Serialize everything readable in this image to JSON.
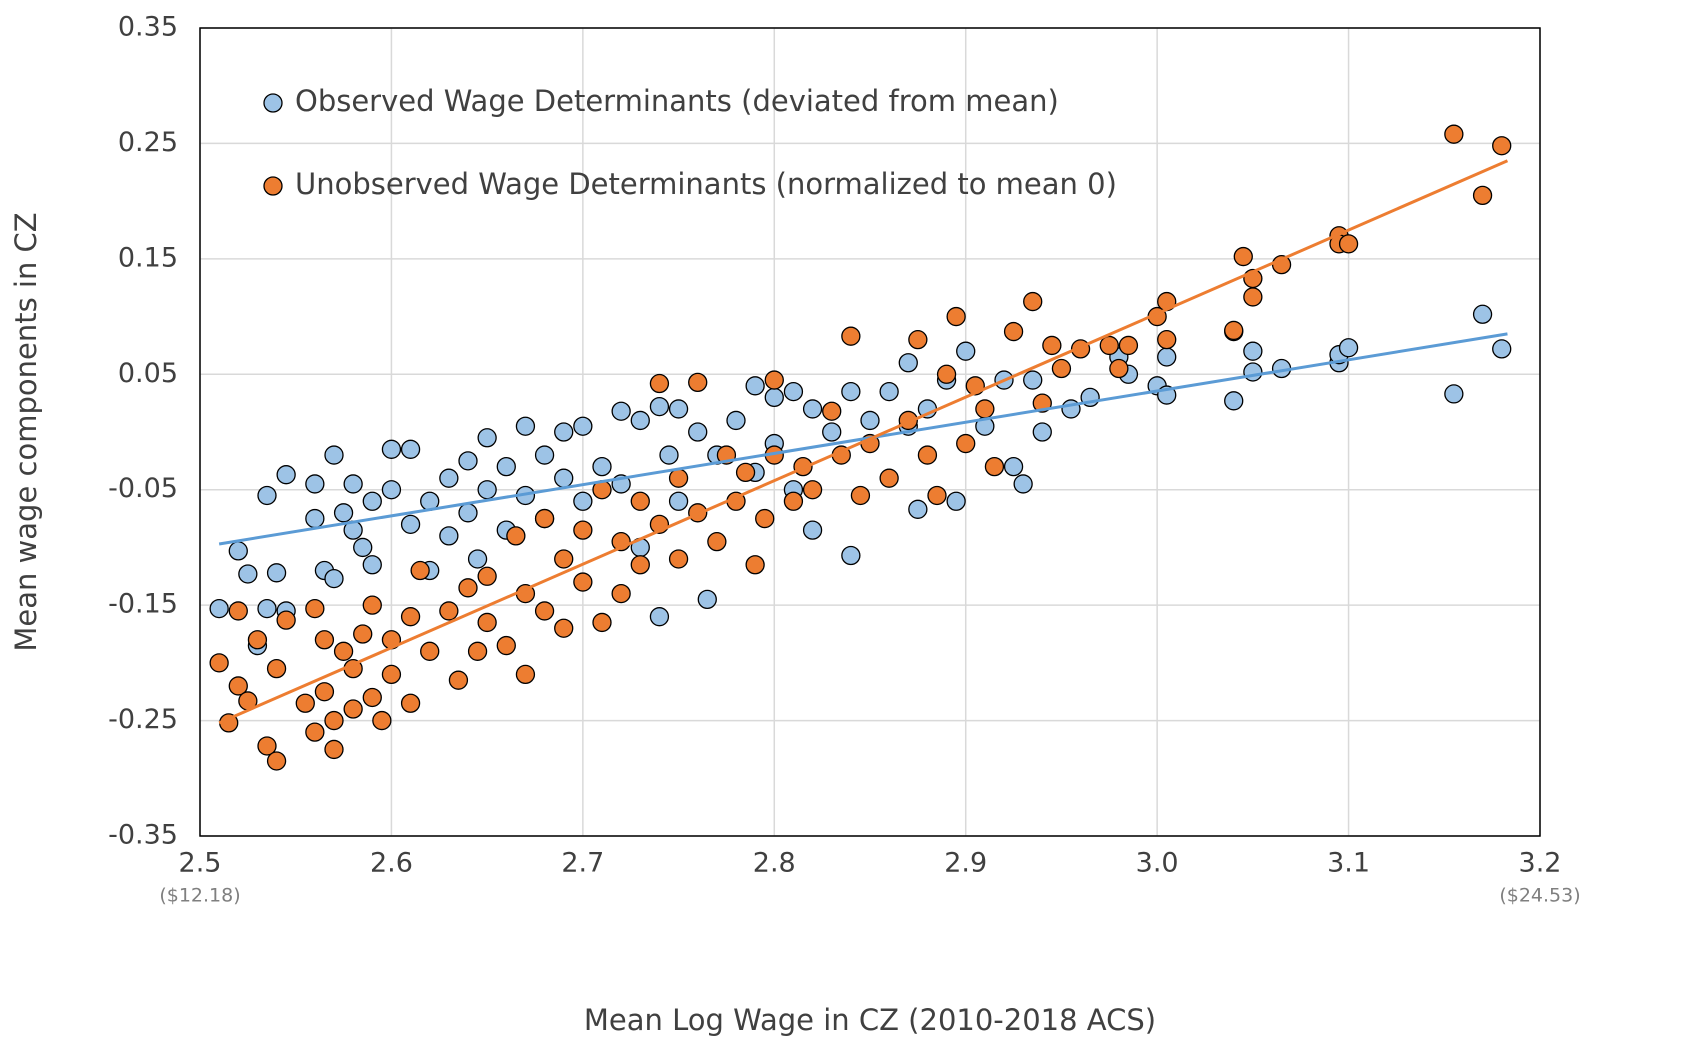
{
  "chart_data": {
    "type": "scatter",
    "x_label": "Mean Log Wage in CZ (2010-2018 ACS)",
    "y_label": "Mean wage components in CZ",
    "xlim": [
      2.5,
      3.2
    ],
    "ylim": [
      -0.35,
      0.35
    ],
    "xticks": [
      2.5,
      2.6,
      2.7,
      2.8,
      2.9,
      {
        "value": 3,
        "label": "3.0"
      },
      3.1,
      3.2
    ],
    "yticks": [
      -0.35,
      -0.25,
      -0.15,
      -0.05,
      0.05,
      0.15,
      0.25,
      0.35
    ],
    "grid": true,
    "legend": "upper left",
    "xtick_notes": [
      {
        "x": 2.5,
        "text": "($12.18)"
      },
      {
        "x": 3.2,
        "text": "($24.53)"
      }
    ],
    "series": [
      {
        "name": "Observed Wage Determinants (deviated from mean)",
        "color": "#9dc3e6",
        "trend_color": "#5b9bd5",
        "trend_x": [
          2.51,
          3.183
        ],
        "trend_y": [
          -0.097,
          0.085
        ],
        "x": [
          2.51,
          2.52,
          2.525,
          2.53,
          2.535,
          2.54,
          2.535,
          2.545,
          2.545,
          2.56,
          2.56,
          2.565,
          2.57,
          2.57,
          2.575,
          2.58,
          2.58,
          2.585,
          2.59,
          2.59,
          2.6,
          2.6,
          2.61,
          2.61,
          2.62,
          2.62,
          2.63,
          2.63,
          2.64,
          2.64,
          2.645,
          2.65,
          2.65,
          2.66,
          2.66,
          2.67,
          2.67,
          2.68,
          2.68,
          2.69,
          2.69,
          2.7,
          2.7,
          2.71,
          2.72,
          2.72,
          2.73,
          2.73,
          2.74,
          2.74,
          2.745,
          2.75,
          2.75,
          2.76,
          2.765,
          2.77,
          2.78,
          2.79,
          2.79,
          2.8,
          2.8,
          2.81,
          2.81,
          2.82,
          2.82,
          2.83,
          2.84,
          2.84,
          2.85,
          2.86,
          2.87,
          2.87,
          2.875,
          2.88,
          2.89,
          2.895,
          2.9,
          2.91,
          2.92,
          2.925,
          2.93,
          2.935,
          2.94,
          2.955,
          2.965,
          2.98,
          2.985,
          3.0,
          3.005,
          3.005,
          3.04,
          3.04,
          3.05,
          3.05,
          3.065,
          3.095,
          3.095,
          3.1,
          3.155,
          3.17,
          3.18
        ],
        "values": [
          -0.153,
          -0.103,
          -0.123,
          -0.185,
          -0.153,
          -0.122,
          -0.055,
          -0.037,
          -0.155,
          -0.045,
          -0.075,
          -0.12,
          -0.127,
          -0.02,
          -0.07,
          -0.045,
          -0.085,
          -0.1,
          -0.06,
          -0.115,
          -0.015,
          -0.05,
          -0.08,
          -0.015,
          -0.06,
          -0.12,
          -0.04,
          -0.09,
          -0.025,
          -0.07,
          -0.11,
          -0.005,
          -0.05,
          -0.03,
          -0.085,
          0.005,
          -0.055,
          -0.02,
          -0.075,
          -0.04,
          0.0,
          0.005,
          -0.06,
          -0.03,
          0.018,
          -0.045,
          0.01,
          -0.1,
          0.022,
          -0.16,
          -0.02,
          0.02,
          -0.06,
          0.0,
          -0.145,
          -0.02,
          0.01,
          0.04,
          -0.035,
          0.03,
          -0.01,
          0.035,
          -0.05,
          0.02,
          -0.085,
          0.0,
          0.035,
          -0.107,
          0.01,
          0.035,
          0.06,
          0.005,
          -0.067,
          0.02,
          0.045,
          -0.06,
          0.07,
          0.005,
          0.045,
          -0.03,
          -0.045,
          0.045,
          0.0,
          0.02,
          0.03,
          0.065,
          0.05,
          0.04,
          0.065,
          0.032,
          0.087,
          0.027,
          0.052,
          0.07,
          0.055,
          0.06,
          0.067,
          0.073,
          0.033,
          0.102,
          0.072
        ]
      },
      {
        "name": "Unobserved Wage Determinants (normalized to mean 0)",
        "color": "#ed7d31",
        "trend_color": "#ed7d31",
        "trend_x": [
          2.51,
          3.183
        ],
        "trend_y": [
          -0.252,
          0.235
        ],
        "x": [
          2.51,
          2.515,
          2.52,
          2.52,
          2.525,
          2.53,
          2.535,
          2.54,
          2.54,
          2.545,
          2.555,
          2.56,
          2.56,
          2.565,
          2.565,
          2.57,
          2.57,
          2.575,
          2.58,
          2.58,
          2.585,
          2.59,
          2.59,
          2.595,
          2.6,
          2.6,
          2.61,
          2.61,
          2.615,
          2.62,
          2.63,
          2.635,
          2.64,
          2.645,
          2.65,
          2.65,
          2.66,
          2.665,
          2.67,
          2.67,
          2.68,
          2.68,
          2.69,
          2.69,
          2.7,
          2.7,
          2.71,
          2.71,
          2.72,
          2.72,
          2.73,
          2.73,
          2.74,
          2.74,
          2.75,
          2.75,
          2.76,
          2.76,
          2.77,
          2.775,
          2.78,
          2.785,
          2.79,
          2.795,
          2.8,
          2.8,
          2.81,
          2.815,
          2.82,
          2.83,
          2.835,
          2.84,
          2.845,
          2.85,
          2.86,
          2.87,
          2.875,
          2.88,
          2.885,
          2.89,
          2.895,
          2.9,
          2.905,
          2.91,
          2.915,
          2.925,
          2.935,
          2.94,
          2.945,
          2.95,
          2.96,
          2.975,
          2.98,
          2.985,
          3.0,
          3.005,
          3.005,
          3.04,
          3.045,
          3.05,
          3.05,
          3.065,
          3.095,
          3.095,
          3.1,
          3.155,
          3.17,
          3.18
        ],
        "values": [
          -0.2,
          -0.252,
          -0.155,
          -0.22,
          -0.233,
          -0.18,
          -0.272,
          -0.205,
          -0.285,
          -0.163,
          -0.235,
          -0.153,
          -0.26,
          -0.225,
          -0.18,
          -0.275,
          -0.25,
          -0.19,
          -0.205,
          -0.24,
          -0.175,
          -0.23,
          -0.15,
          -0.25,
          -0.18,
          -0.21,
          -0.16,
          -0.235,
          -0.12,
          -0.19,
          -0.155,
          -0.215,
          -0.135,
          -0.19,
          -0.125,
          -0.165,
          -0.185,
          -0.09,
          -0.14,
          -0.21,
          -0.075,
          -0.155,
          -0.11,
          -0.17,
          -0.085,
          -0.13,
          -0.05,
          -0.165,
          -0.095,
          -0.14,
          -0.06,
          -0.115,
          -0.08,
          0.042,
          -0.04,
          -0.11,
          0.043,
          -0.07,
          -0.095,
          -0.02,
          -0.06,
          -0.035,
          -0.115,
          -0.075,
          -0.02,
          0.045,
          -0.06,
          -0.03,
          -0.05,
          0.018,
          -0.02,
          0.083,
          -0.055,
          -0.01,
          -0.04,
          0.01,
          0.08,
          -0.02,
          -0.055,
          0.05,
          0.1,
          -0.01,
          0.04,
          0.02,
          -0.03,
          0.087,
          0.113,
          0.025,
          0.075,
          0.055,
          0.072,
          0.075,
          0.055,
          0.075,
          0.1,
          0.113,
          0.08,
          0.088,
          0.152,
          0.133,
          0.117,
          0.145,
          0.17,
          0.163,
          0.163,
          0.258,
          0.205,
          0.248
        ]
      }
    ]
  }
}
